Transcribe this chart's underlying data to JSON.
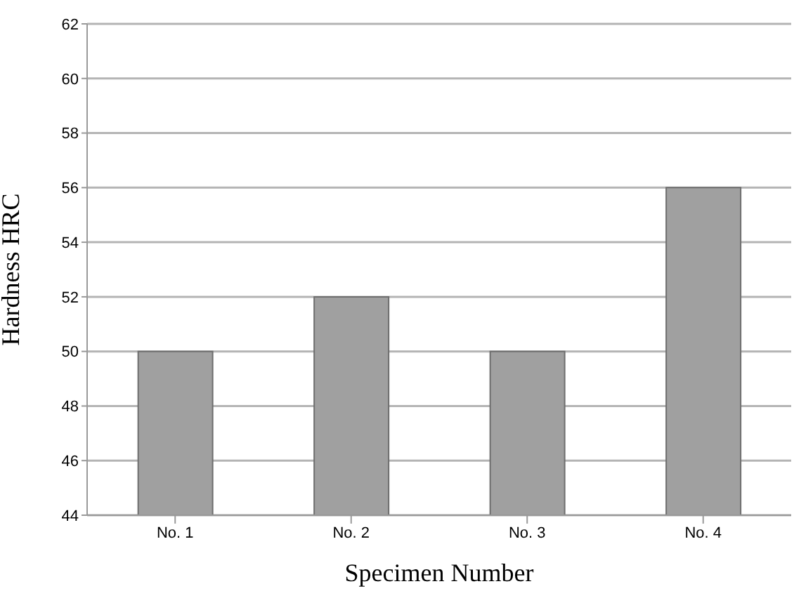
{
  "chart_data": {
    "type": "bar",
    "xlabel": "Specimen Number",
    "ylabel": "Hardness HRC",
    "categories": [
      "No. 1",
      "No. 2",
      "No. 3",
      "No. 4"
    ],
    "values": [
      50,
      52,
      50,
      56
    ],
    "color": "#a0a0a0",
    "ylim": [
      44,
      62
    ],
    "yticks": [
      44,
      46,
      48,
      50,
      52,
      54,
      56,
      58,
      60,
      62
    ],
    "grid": "y"
  }
}
